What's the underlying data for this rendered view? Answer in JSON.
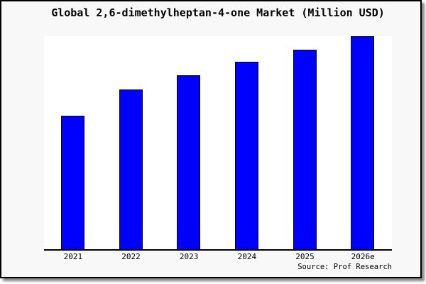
{
  "chart": {
    "title": "Global 2,6-dimethylheptan-4-one Market (Million USD)",
    "source": "Source: Prof Research"
  },
  "chart_data": {
    "type": "bar",
    "title": "Global 2,6-dimethylheptan-4-one Market (Million USD)",
    "categories": [
      "2021",
      "2022",
      "2023",
      "2024",
      "2025",
      "2026e"
    ],
    "values": [
      62.8,
      75.1,
      81.7,
      88.0,
      93.7,
      100.0
    ],
    "values_note": "no y-axis scale shown; values estimated as percent of tallest bar (2026e = 100)",
    "xlabel": "",
    "ylabel": "",
    "ylim": [
      0,
      100
    ],
    "grid": false,
    "legend": "none",
    "annotation": "Source: Prof Research",
    "bar_color": "#0000ff",
    "bar_border_color": "#000000",
    "plot_background": "#ffffff",
    "canvas_background": "#f8f8f8",
    "frame_border_color": "#000000"
  }
}
